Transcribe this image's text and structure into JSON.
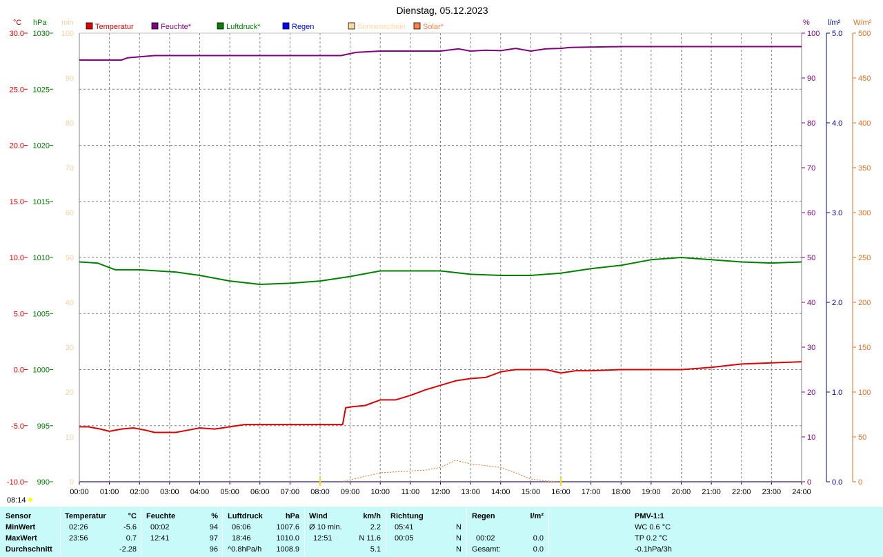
{
  "title": "Dienstag, 05.12.2023",
  "time_marker": "08:14",
  "units": {
    "temp": "°C",
    "press": "hPa",
    "min": "min",
    "hum": "%",
    "rain": "l/m²",
    "solar": "W/m²"
  },
  "legend": [
    {
      "label": "Temperatur",
      "color": "#e00000"
    },
    {
      "label": "Feuchte*",
      "color": "#800080"
    },
    {
      "label": "Luftdruck*",
      "color": "#008000"
    },
    {
      "label": "Regen",
      "color": "#0000ff"
    },
    {
      "label": "Sonnenschein",
      "color": "#ffd8a0"
    },
    {
      "label": "Solar*",
      "color": "#ff8040"
    }
  ],
  "colors": {
    "temp": "#dd0000",
    "press": "#008000",
    "min": "#f0d0a0",
    "hum": "#800080",
    "rain": "#0000a0",
    "solar": "#e07020",
    "grid": "#808080"
  },
  "chart_data": {
    "type": "line",
    "x_ticks": [
      "00:00",
      "01:00",
      "02:00",
      "03:00",
      "04:00",
      "05:00",
      "06:00",
      "07:00",
      "08:00",
      "09:00",
      "10:00",
      "11:00",
      "12:00",
      "13:00",
      "14:00",
      "15:00",
      "16:00",
      "17:00",
      "18:00",
      "19:00",
      "20:00",
      "21:00",
      "22:00",
      "23:00",
      "24:00"
    ],
    "xlim_hours": [
      0,
      24
    ],
    "axes": {
      "temp": {
        "range": [
          -10,
          30
        ],
        "ticks": [
          "30.0",
          "25.0",
          "20.0",
          "15.0",
          "10.0",
          "5.0",
          "0.0",
          "-5.0",
          "-10.0"
        ]
      },
      "press": {
        "range": [
          990,
          1030
        ],
        "ticks": [
          "1030",
          "1025",
          "1020",
          "1015",
          "1010",
          "1005",
          "1000",
          "995",
          "990"
        ]
      },
      "min": {
        "range": [
          0,
          100
        ],
        "ticks": [
          "100",
          "90",
          "80",
          "70",
          "60",
          "50",
          "40",
          "30",
          "20",
          "10",
          "0"
        ]
      },
      "hum": {
        "range": [
          0,
          100
        ],
        "ticks": [
          "100",
          "90",
          "80",
          "70",
          "60",
          "50",
          "40",
          "30",
          "20",
          "10",
          "0"
        ]
      },
      "rain": {
        "range": [
          0,
          5
        ],
        "ticks": [
          "5.0",
          "4.0",
          "3.0",
          "2.0",
          "1.0",
          "0.0"
        ]
      },
      "solar": {
        "range": [
          0,
          500
        ],
        "ticks": [
          "500",
          "450",
          "400",
          "350",
          "300",
          "250",
          "200",
          "150",
          "100",
          "50",
          "0"
        ]
      }
    },
    "grid": true,
    "series": [
      {
        "name": "Temperatur",
        "axis": "temp",
        "color": "#dd0000",
        "width": 2,
        "points": [
          [
            0,
            -5.1
          ],
          [
            0.3,
            -5.1
          ],
          [
            0.7,
            -5.3
          ],
          [
            1,
            -5.5
          ],
          [
            1.4,
            -5.3
          ],
          [
            1.8,
            -5.2
          ],
          [
            2.2,
            -5.4
          ],
          [
            2.5,
            -5.6
          ],
          [
            3.2,
            -5.6
          ],
          [
            3.6,
            -5.4
          ],
          [
            4,
            -5.2
          ],
          [
            4.5,
            -5.3
          ],
          [
            5,
            -5.1
          ],
          [
            5.5,
            -4.9
          ],
          [
            6,
            -4.9
          ],
          [
            6.5,
            -4.9
          ],
          [
            7.5,
            -4.9
          ],
          [
            8.5,
            -4.9
          ],
          [
            8.75,
            -4.9
          ],
          [
            8.85,
            -3.4
          ],
          [
            9.1,
            -3.3
          ],
          [
            9.5,
            -3.2
          ],
          [
            10,
            -2.7
          ],
          [
            10.5,
            -2.7
          ],
          [
            11,
            -2.3
          ],
          [
            11.5,
            -1.8
          ],
          [
            12,
            -1.4
          ],
          [
            12.5,
            -1.0
          ],
          [
            13,
            -0.8
          ],
          [
            13.5,
            -0.7
          ],
          [
            14,
            -0.2
          ],
          [
            14.5,
            0.0
          ],
          [
            15,
            0.0
          ],
          [
            15.5,
            0.0
          ],
          [
            16,
            -0.3
          ],
          [
            16.5,
            -0.1
          ],
          [
            17,
            -0.1
          ],
          [
            18,
            0.0
          ],
          [
            19,
            0.0
          ],
          [
            20,
            0.0
          ],
          [
            21,
            0.2
          ],
          [
            22,
            0.5
          ],
          [
            23,
            0.6
          ],
          [
            24,
            0.7
          ]
        ]
      },
      {
        "name": "Feuchte*",
        "axis": "hum",
        "color": "#800080",
        "width": 2,
        "points": [
          [
            0,
            94
          ],
          [
            1.4,
            94
          ],
          [
            1.6,
            94.5
          ],
          [
            2.5,
            95
          ],
          [
            3.5,
            95
          ],
          [
            5,
            95
          ],
          [
            6,
            95
          ],
          [
            7,
            95
          ],
          [
            8.7,
            95
          ],
          [
            9.2,
            95.7
          ],
          [
            10,
            96
          ],
          [
            11,
            96
          ],
          [
            12,
            96
          ],
          [
            12.6,
            96.5
          ],
          [
            13,
            96
          ],
          [
            13.5,
            96.2
          ],
          [
            14,
            96.1
          ],
          [
            14.5,
            96.6
          ],
          [
            15,
            96
          ],
          [
            15.5,
            96.5
          ],
          [
            16,
            96.6
          ],
          [
            16.3,
            96.8
          ],
          [
            18,
            97
          ],
          [
            20,
            97
          ],
          [
            22,
            97
          ],
          [
            24,
            97
          ]
        ]
      },
      {
        "name": "Luftdruck*",
        "axis": "press",
        "color": "#008000",
        "width": 2,
        "points": [
          [
            0,
            1009.6
          ],
          [
            0.6,
            1009.5
          ],
          [
            1.2,
            1008.9
          ],
          [
            2,
            1008.9
          ],
          [
            3.2,
            1008.7
          ],
          [
            4,
            1008.4
          ],
          [
            5,
            1007.9
          ],
          [
            6,
            1007.6
          ],
          [
            7,
            1007.7
          ],
          [
            8,
            1007.9
          ],
          [
            9,
            1008.3
          ],
          [
            10,
            1008.8
          ],
          [
            11,
            1008.8
          ],
          [
            12,
            1008.8
          ],
          [
            13,
            1008.5
          ],
          [
            14,
            1008.4
          ],
          [
            15,
            1008.4
          ],
          [
            16,
            1008.6
          ],
          [
            17,
            1009.0
          ],
          [
            18,
            1009.3
          ],
          [
            19,
            1009.8
          ],
          [
            20,
            1010.0
          ],
          [
            21,
            1009.8
          ],
          [
            22,
            1009.6
          ],
          [
            23,
            1009.5
          ],
          [
            24,
            1009.6
          ]
        ]
      },
      {
        "name": "Regen",
        "axis": "rain",
        "color": "#0000a0",
        "width": 2,
        "points": [
          [
            0,
            0
          ],
          [
            24,
            0
          ]
        ]
      },
      {
        "name": "Solar*",
        "axis": "solar",
        "color": "#e07020",
        "width": 1,
        "dash": "2,2",
        "points": [
          [
            8.7,
            0
          ],
          [
            9.5,
            6
          ],
          [
            10,
            10
          ],
          [
            11,
            12
          ],
          [
            11.5,
            13
          ],
          [
            12,
            16
          ],
          [
            12.5,
            24
          ],
          [
            13,
            20
          ],
          [
            13.5,
            18
          ],
          [
            14,
            16
          ],
          [
            14.5,
            10
          ],
          [
            15,
            3
          ],
          [
            15.5,
            1
          ],
          [
            16,
            0
          ]
        ]
      },
      {
        "name": "Sonnenschein",
        "axis": "min",
        "color": "#ffd8a0",
        "width": 1,
        "points": [
          [
            0,
            0
          ],
          [
            24,
            0
          ]
        ]
      }
    ]
  },
  "stats": {
    "headers": {
      "sensor": "Sensor",
      "temp": "Temperatur",
      "temp_unit": "°C",
      "hum": "Feuchte",
      "hum_unit": "%",
      "press": "Luftdruck",
      "press_unit": "hPa",
      "wind": "Wind",
      "wind_unit": "km/h",
      "dir": "Richtung",
      "rain": "Regen",
      "rain_unit": "l/m²",
      "pmv": "PMV-1:1"
    },
    "rows": [
      {
        "label": "MinWert",
        "temp_time": "02:26",
        "temp_val": "-5.6",
        "hum_time": "00:02",
        "hum_val": "94",
        "press_time": "06:06",
        "press_val": "1007.6",
        "wind_time": "Ø 10 min.",
        "wind_val": "2.2",
        "dir_time": "05:41",
        "dir_val": "N",
        "rain_time": "",
        "rain_val": "",
        "pmv": "WC 0.6 °C"
      },
      {
        "label": "MaxWert",
        "temp_time": "23:56",
        "temp_val": "0.7",
        "hum_time": "12:41",
        "hum_val": "97",
        "press_time": "18:46",
        "press_val": "1010.0",
        "wind_time": "12:51",
        "wind_val": "N 11.6",
        "dir_time": "00:05",
        "dir_val": "N",
        "rain_time": "00:02",
        "rain_val": "0.0",
        "pmv": "TP 0.2 °C"
      },
      {
        "label": "Durchschnitt",
        "temp_time": "",
        "temp_val": "-2.28",
        "hum_time": "",
        "hum_val": "96",
        "press_time": "^0.8hPa/h",
        "press_val": "1008.9",
        "wind_time": "",
        "wind_val": "5.1",
        "dir_time": "",
        "dir_val": "N",
        "rain_time": "Gesamt:",
        "rain_val": "0.0",
        "pmv": "-0.1hPa/3h"
      }
    ]
  }
}
